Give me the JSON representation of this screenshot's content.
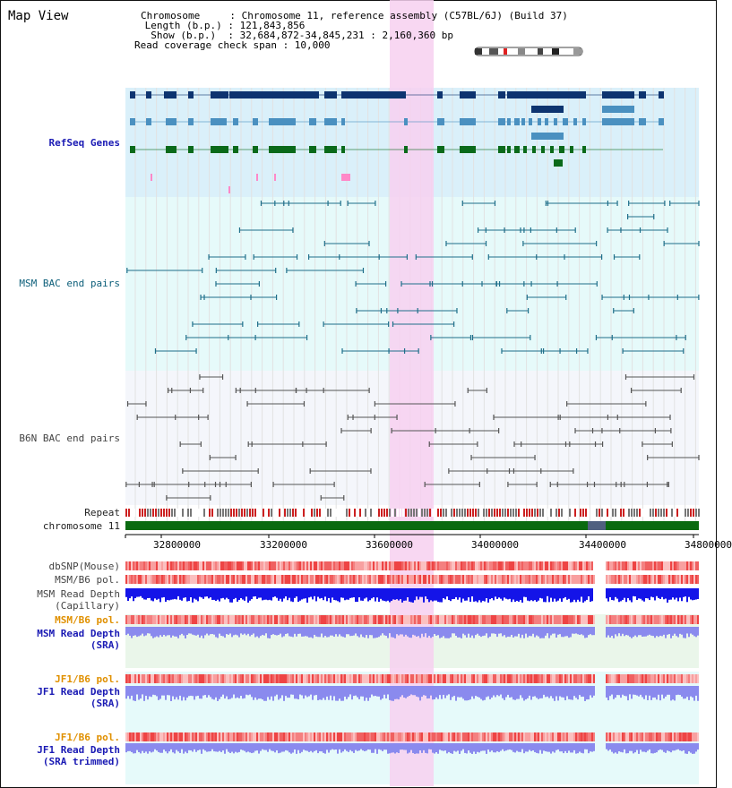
{
  "title": "Map View",
  "info": {
    "chromosome": "Chromosome     : Chromosome 11, reference assembly (C57BL/6J) (Build 37)",
    "length": " Length (b.p.) : 121,843,856",
    "show": "  Show (b.p.)  : 32,684,872-34,845,231 : 2,160,360 bp",
    "span": "Read coverage check span : 10,000"
  },
  "tracks": {
    "refseq": "RefSeq Genes",
    "msm_bac": "MSM BAC end pairs",
    "b6n_bac": "B6N BAC end pairs",
    "repeat": "Repeat",
    "chromosome": "chromosome 11",
    "dbsnp": "dbSNP(Mouse)",
    "msm_pol": "MSM/B6 pol.",
    "msm_depth_cap_1": "MSM Read Depth",
    "msm_depth_cap_2": "(Capillary)",
    "msm_pol_sra": "MSM/B6 pol.",
    "msm_depth_sra_1": "MSM Read Depth",
    "msm_depth_sra_2": "(SRA)",
    "jf1_pol": "JF1/B6 pol.",
    "jf1_depth_1": "JF1 Read Depth",
    "jf1_depth_2": "(SRA)",
    "jf1_pol_2": "JF1/B6 pol.",
    "jf1_trim_1": "JF1 Read Depth",
    "jf1_trim_2": "(SRA trimmed)"
  },
  "axis": {
    "ticks": [
      "32800000",
      "33200000",
      "33600000",
      "34000000",
      "34400000",
      "34800000"
    ]
  },
  "colors": {
    "refseq_bg": "#daf0fa",
    "bac_bg": "#e6fafa",
    "b6n_bg": "#f4f6fb",
    "highlight": "#f7d0f0",
    "gene_dark": "#0d3470",
    "gene_mid": "#4a90c0",
    "gene_green": "#0a6a1a",
    "chromosome_bar": "#0a6a10",
    "depth_blue": "#1414e8",
    "depth_light": "#8a8aee",
    "pol_red": "#f06060"
  }
}
